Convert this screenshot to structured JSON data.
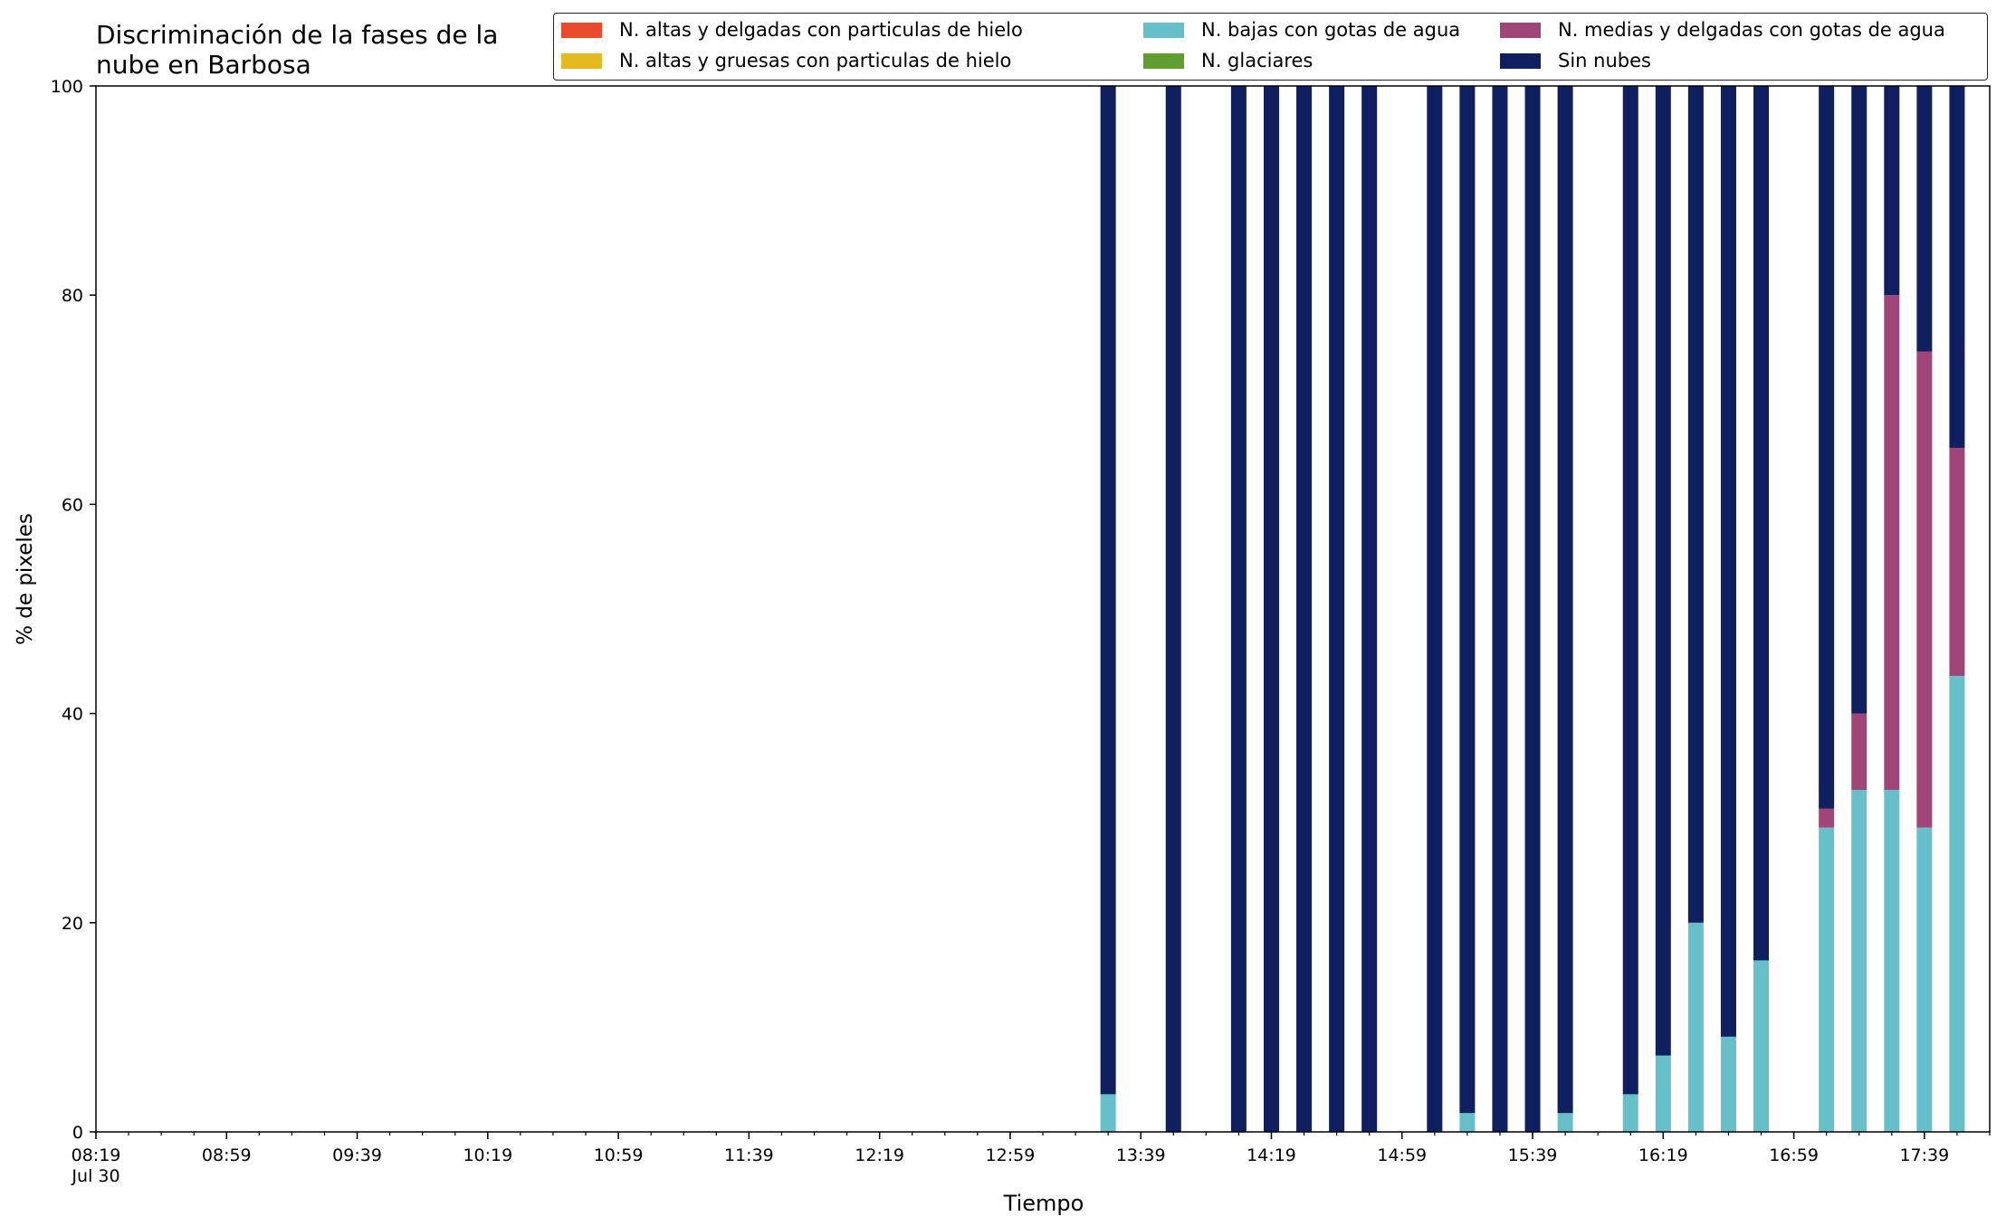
{
  "chart_data": {
    "type": "bar",
    "stacked": true,
    "title": "Discriminación de la fases de la nube en Barbosa",
    "xlabel": "Tiempo",
    "ylabel": "% de pixeles",
    "ylim": [
      0,
      100
    ],
    "y_ticks": [
      "0",
      "20",
      "40",
      "60",
      "80",
      "100"
    ],
    "x_tick_labels": [
      "08:19\nJul 30",
      "08:59",
      "09:39",
      "10:19",
      "10:59",
      "11:39",
      "12:19",
      "12:59",
      "13:39",
      "14:19",
      "14:59",
      "15:39",
      "16:19",
      "16:59",
      "17:39"
    ],
    "x_range": [
      "08:19",
      "17:59"
    ],
    "grid": false,
    "legend_position": "top-right",
    "categories": [
      "13:29",
      "13:49",
      "14:09",
      "14:19",
      "14:29",
      "14:39",
      "14:49",
      "15:09",
      "15:19",
      "15:29",
      "15:39",
      "15:49",
      "16:09",
      "16:19",
      "16:29",
      "16:39",
      "16:49",
      "17:09",
      "17:19",
      "17:29",
      "17:39",
      "17:49"
    ],
    "series": [
      {
        "name": "N. altas y delgadas con particulas de hielo",
        "color": "#e84b2d",
        "values": [
          0,
          0,
          0,
          0,
          0,
          0,
          0,
          0,
          0,
          0,
          0,
          0,
          0,
          0,
          0,
          0,
          0,
          0,
          0,
          0,
          0,
          0
        ]
      },
      {
        "name": "N. altas y gruesas con particulas de hielo",
        "color": "#e4b81f",
        "values": [
          0,
          0,
          0,
          0,
          0,
          0,
          0,
          0,
          0,
          0,
          0,
          0,
          0,
          0,
          0,
          0,
          0,
          0,
          0,
          0,
          0,
          0
        ]
      },
      {
        "name": "N. bajas con gotas de agua",
        "color": "#66bfc9",
        "values": [
          3.6,
          0,
          0,
          0,
          0,
          0,
          0,
          0,
          1.8,
          0,
          0,
          1.8,
          3.6,
          7.3,
          20,
          9.1,
          16.4,
          29.1,
          32.7,
          32.7,
          29.1,
          43.6
        ]
      },
      {
        "name": "N. glaciares",
        "color": "#5f9e2f",
        "values": [
          0,
          0,
          0,
          0,
          0,
          0,
          0,
          0,
          0,
          0,
          0,
          0,
          0,
          0,
          0,
          0,
          0,
          0,
          0,
          0,
          0,
          0
        ]
      },
      {
        "name": "N. medias y delgadas con gotas de agua",
        "color": "#a04577",
        "values": [
          0,
          0,
          0,
          0,
          0,
          0,
          0,
          0,
          0,
          0,
          0,
          0,
          0,
          0,
          0,
          0,
          0,
          1.8,
          7.3,
          47.3,
          45.5,
          21.8
        ]
      },
      {
        "name": "Sin nubes",
        "color": "#0f1f5f",
        "values": [
          96.4,
          100,
          100,
          100,
          100,
          100,
          100,
          100,
          98.2,
          100,
          100,
          98.2,
          96.4,
          92.7,
          80,
          90.9,
          83.6,
          69.1,
          60,
          20,
          25.4,
          34.6
        ]
      }
    ]
  }
}
